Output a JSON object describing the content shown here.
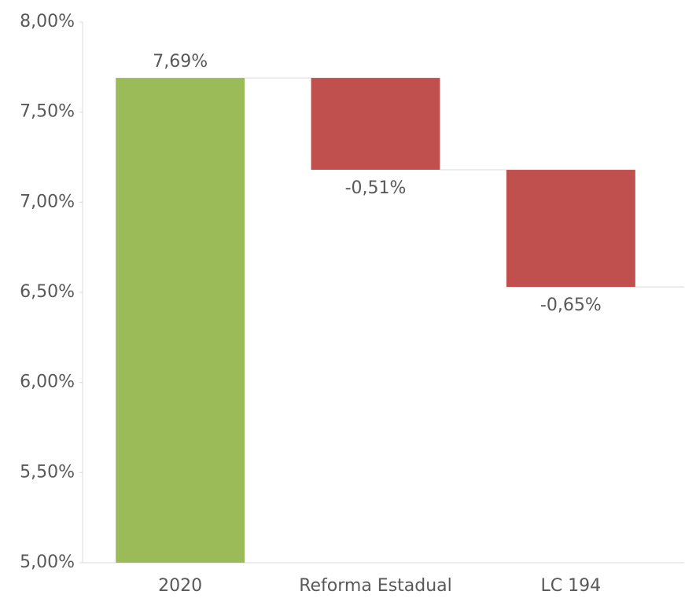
{
  "chart_data": {
    "type": "waterfall",
    "categories": [
      "2020",
      "Reforma Estadual",
      "LC 194"
    ],
    "values": [
      7.69,
      -0.51,
      -0.65
    ],
    "value_labels": [
      "7,69%",
      "-0,51%",
      "-0,65%"
    ],
    "colors": [
      "#9bbb59",
      "#c0504d",
      "#c0504d"
    ],
    "ylim": [
      5,
      8
    ],
    "yticks": [
      {
        "value": 5,
        "label": "5,00%"
      },
      {
        "value": 5.5,
        "label": "5,50%"
      },
      {
        "value": 6,
        "label": "6,00%"
      },
      {
        "value": 6.5,
        "label": "6,50%"
      },
      {
        "value": 7,
        "label": "7,00%"
      },
      {
        "value": 7.5,
        "label": "7,50%"
      },
      {
        "value": 8,
        "label": "8,00%"
      }
    ],
    "grid": false
  }
}
